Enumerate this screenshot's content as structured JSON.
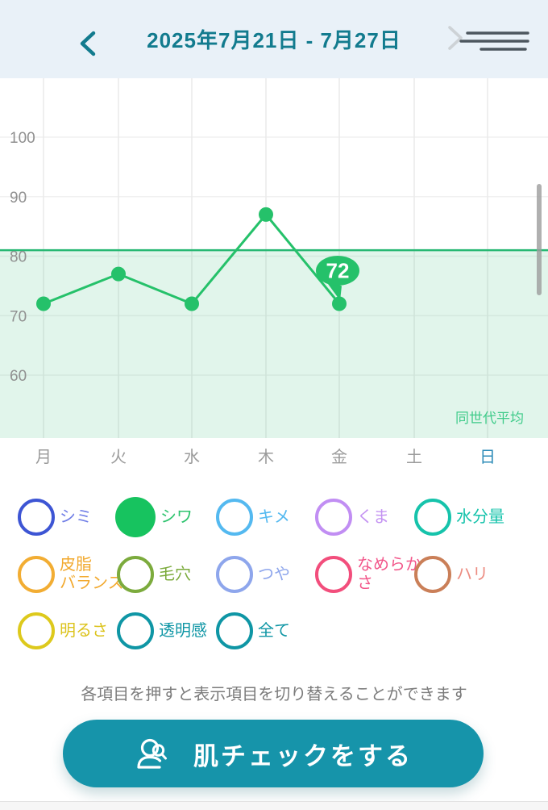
{
  "header": {
    "title": "2025年7月21日 - 7月27日",
    "back_icon": "chevron-left",
    "menu_icon": "next-and-menu-lines",
    "accent_color": "#127b8e",
    "background_color": "#e9f1f8"
  },
  "chart_data": {
    "type": "line",
    "x_categories": [
      "月",
      "火",
      "水",
      "木",
      "金",
      "土",
      "日"
    ],
    "highlighted_category": "日",
    "highlighted_category_color": "#2e8cb8",
    "series": [
      {
        "name": "シワ",
        "color": "#25c16a",
        "values": [
          72,
          77,
          72,
          87,
          72,
          null,
          null
        ]
      }
    ],
    "callout": {
      "category": "金",
      "value": 72
    },
    "average": {
      "value": 81,
      "label": "同世代平均",
      "line_color": "#27b873",
      "band_color": "rgba(39,184,115,0.14)",
      "label_color": "#3fcb8a"
    },
    "yticks": [
      60,
      70,
      80,
      90,
      100
    ],
    "ylim": [
      50,
      104
    ],
    "grid": true,
    "axis_label_color": "#909090",
    "day_label_color": "#9b9b9b"
  },
  "legend": {
    "rows": [
      [
        {
          "label": "シミ",
          "ring": "#3d55d4",
          "text": "#6f7de6",
          "filled": false
        },
        {
          "label": "シワ",
          "ring": "#17c35f",
          "text": "#2cc36d",
          "filled": true
        },
        {
          "label": "キメ",
          "ring": "#54b9f0",
          "text": "#54b9f0",
          "filled": false
        },
        {
          "label": "くま",
          "ring": "#c18ef3",
          "text": "#c493f2",
          "filled": false
        },
        {
          "label": "水分量",
          "ring": "#16c3ab",
          "text": "#16c3ab",
          "filled": false
        }
      ],
      [
        {
          "label": "皮脂\nバランス",
          "ring": "#f2ad33",
          "text": "#f2a92e",
          "filled": false
        },
        {
          "label": "毛穴",
          "ring": "#7cab3d",
          "text": "#7cab3d",
          "filled": false
        },
        {
          "label": "つや",
          "ring": "#8ea6ec",
          "text": "#8ea6ec",
          "filled": false
        },
        {
          "label": "なめらか\nさ",
          "ring": "#f24e7c",
          "text": "#f2568a",
          "filled": false
        },
        {
          "label": "ハリ",
          "ring": "#ca7f58",
          "text": "#ec8b80",
          "filled": false
        }
      ],
      [
        {
          "label": "明るさ",
          "ring": "#ddc91c",
          "text": "#dcc31d",
          "filled": false
        },
        {
          "label": "透明感",
          "ring": "#0f96a5",
          "text": "#0f96a5",
          "filled": false
        },
        {
          "label": "全て",
          "ring": "#0f96a5",
          "text": "#0f96a5",
          "filled": false
        }
      ]
    ],
    "note": "各項目を押すと表示項目を切り替えることができます"
  },
  "action_button": {
    "label": "肌チェックをする",
    "icon": "face-scan",
    "color": "#1694aa"
  }
}
